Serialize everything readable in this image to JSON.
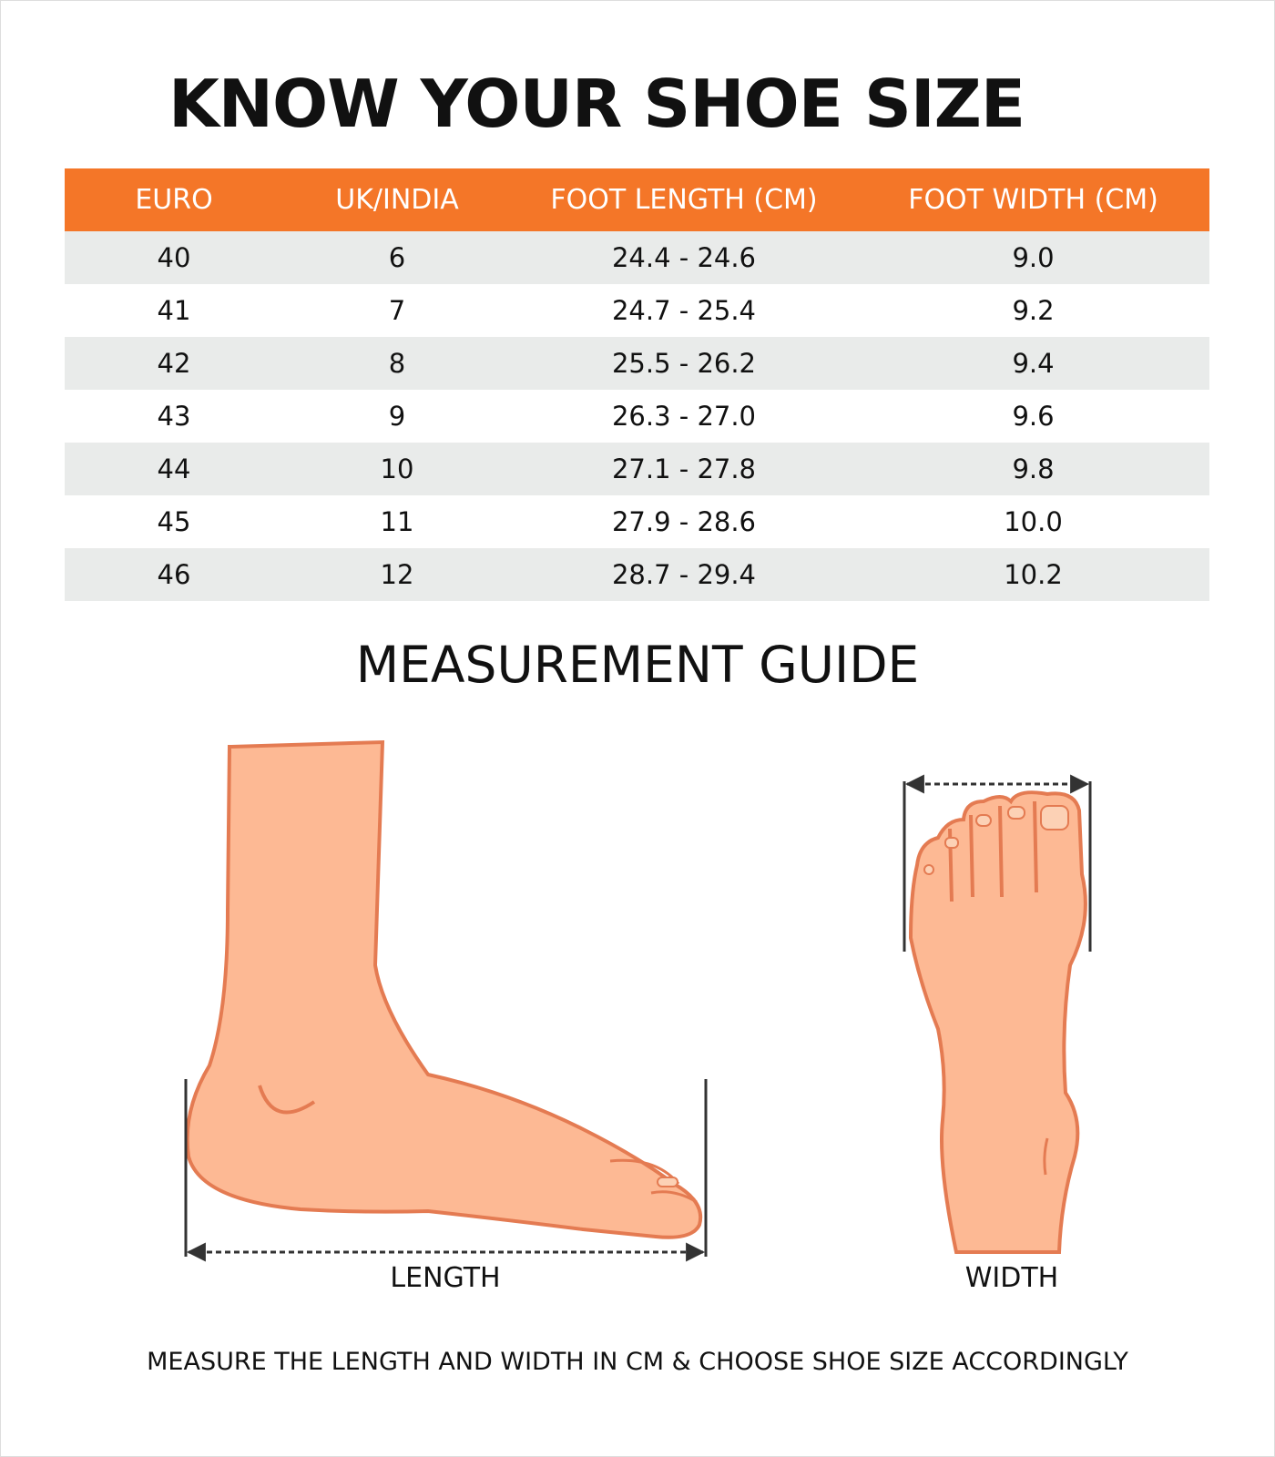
{
  "title": "KNOW YOUR SHOE SIZE",
  "table": {
    "headers": [
      "EURO",
      "UK/INDIA",
      "FOOT LENGTH (CM)",
      "FOOT WIDTH (CM)"
    ],
    "rows": [
      [
        "40",
        "6",
        "24.4 - 24.6",
        "9.0"
      ],
      [
        "41",
        "7",
        "24.7 - 25.4",
        "9.2"
      ],
      [
        "42",
        "8",
        "25.5 - 26.2",
        "9.4"
      ],
      [
        "43",
        "9",
        "26.3 - 27.0",
        "9.6"
      ],
      [
        "44",
        "10",
        "27.1 - 27.8",
        "9.8"
      ],
      [
        "45",
        "11",
        "27.9 - 28.6",
        "10.0"
      ],
      [
        "46",
        "12",
        "28.7 - 29.4",
        "10.2"
      ]
    ]
  },
  "guide": {
    "title": "MEASUREMENT GUIDE",
    "length_label": "LENGTH",
    "width_label": "WIDTH",
    "footer": "MEASURE THE LENGTH AND WIDTH IN CM & CHOOSE SHOE SIZE ACCORDINGLY"
  },
  "colors": {
    "header": "#f47628",
    "row_alt": "#e9ebea",
    "skin": "#fdb994",
    "outline": "#e47b52"
  }
}
